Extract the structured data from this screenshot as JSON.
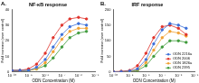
{
  "chart_data": [
    {
      "type": "line",
      "panel_label": "A.",
      "title": "NF-κB response",
      "x_label": "ODN Concentration (M)",
      "y_label": "Fold increase (over control)",
      "x": [
        1e-10,
        3e-10,
        1e-09,
        3e-09,
        1e-08,
        3e-08,
        1e-07,
        3e-07,
        1e-06,
        3e-06
      ],
      "series": [
        {
          "name": "ODN 2216a",
          "color": "#3b6fd8",
          "values": [
            1,
            1,
            1,
            3,
            8,
            16,
            24,
            29,
            31,
            30
          ]
        },
        {
          "name": "ODN 2006",
          "color": "#e0322b",
          "values": [
            1,
            1,
            2,
            5,
            12,
            22,
            30,
            34,
            35,
            34
          ]
        },
        {
          "name": "ODN 1826a",
          "color": "#f0a030",
          "values": [
            1,
            1,
            1,
            2,
            6,
            13,
            21,
            26,
            28,
            28
          ]
        },
        {
          "name": "ODN 2395",
          "color": "#3e9a3a",
          "values": [
            1,
            1,
            1,
            2,
            4,
            9,
            16,
            22,
            25,
            26
          ]
        }
      ],
      "log": "x",
      "marker": "circle",
      "grid": false,
      "xlim": [
        1e-10,
        1e-05
      ],
      "xticks": [
        {
          "value": 1e-10,
          "label": "10⁻¹⁰"
        },
        {
          "value": 1e-09,
          "label": "10⁻⁹"
        },
        {
          "value": 1e-08,
          "label": "10⁻⁸"
        },
        {
          "value": 1e-07,
          "label": "10⁻⁷"
        },
        {
          "value": 1e-06,
          "label": "10⁻⁶"
        },
        {
          "value": 1e-05,
          "label": "10⁻⁵"
        }
      ],
      "ylim": [
        0,
        40
      ],
      "yticks": [
        0,
        10,
        20,
        30,
        40
      ]
    },
    {
      "type": "line",
      "panel_label": "B.",
      "title": "IRF response",
      "x_label": "ODN Concentration (M)",
      "y_label": "Fold increase (over control)",
      "x": [
        1e-10,
        3e-10,
        1e-09,
        3e-09,
        1e-08,
        3e-08,
        1e-07,
        3e-07,
        1e-06,
        3e-06
      ],
      "series": [
        {
          "name": "ODN 2216a",
          "color": "#3b6fd8",
          "values": [
            1,
            1,
            3,
            10,
            40,
            90,
            135,
            155,
            150,
            140
          ]
        },
        {
          "name": "ODN 2006",
          "color": "#e0322b",
          "values": [
            1,
            2,
            5,
            20,
            60,
            110,
            145,
            150,
            140,
            120
          ]
        },
        {
          "name": "ODN 1826a",
          "color": "#f0a030",
          "values": [
            1,
            1,
            2,
            8,
            30,
            70,
            110,
            130,
            125,
            115
          ]
        },
        {
          "name": "ODN 2395",
          "color": "#3e9a3a",
          "values": [
            1,
            1,
            2,
            5,
            20,
            50,
            80,
            100,
            100,
            95
          ]
        }
      ],
      "log": "x",
      "marker": "circle",
      "grid": false,
      "legend": "lower right",
      "xlim": [
        1e-10,
        1e-05
      ],
      "xticks": [
        {
          "value": 1e-10,
          "label": "10⁻¹⁰"
        },
        {
          "value": 1e-09,
          "label": "10⁻⁹"
        },
        {
          "value": 1e-08,
          "label": "10⁻⁸"
        },
        {
          "value": 1e-07,
          "label": "10⁻⁷"
        },
        {
          "value": 1e-06,
          "label": "10⁻⁶"
        },
        {
          "value": 1e-05,
          "label": "10⁻⁵"
        }
      ],
      "ylim": [
        0,
        200
      ],
      "yticks": [
        0,
        50,
        100,
        150,
        200
      ]
    }
  ]
}
